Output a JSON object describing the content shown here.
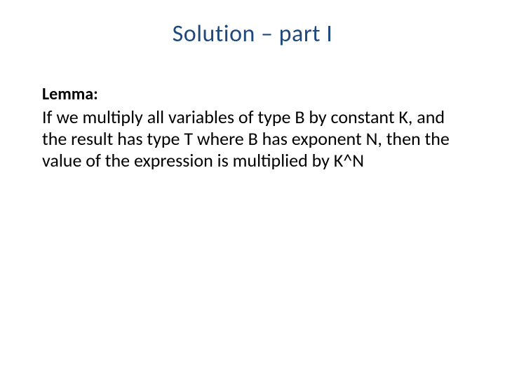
{
  "title": {
    "text": "Solution – part I",
    "color": "#1f497d",
    "fontsize": 34,
    "weight": 400
  },
  "subhead": {
    "text": "Lemma:",
    "color": "#000000",
    "fontsize": 24,
    "weight": 700
  },
  "body": {
    "text": "If we multiply all variables of type B by constant K, and the result has type T where B has exponent N, then the value of the expression is multiplied by K^N",
    "color": "#000000",
    "fontsize": 26,
    "lineheight": 1.2,
    "weight": 400
  },
  "background_color": "#ffffff",
  "slide_width": 720,
  "slide_height": 540
}
